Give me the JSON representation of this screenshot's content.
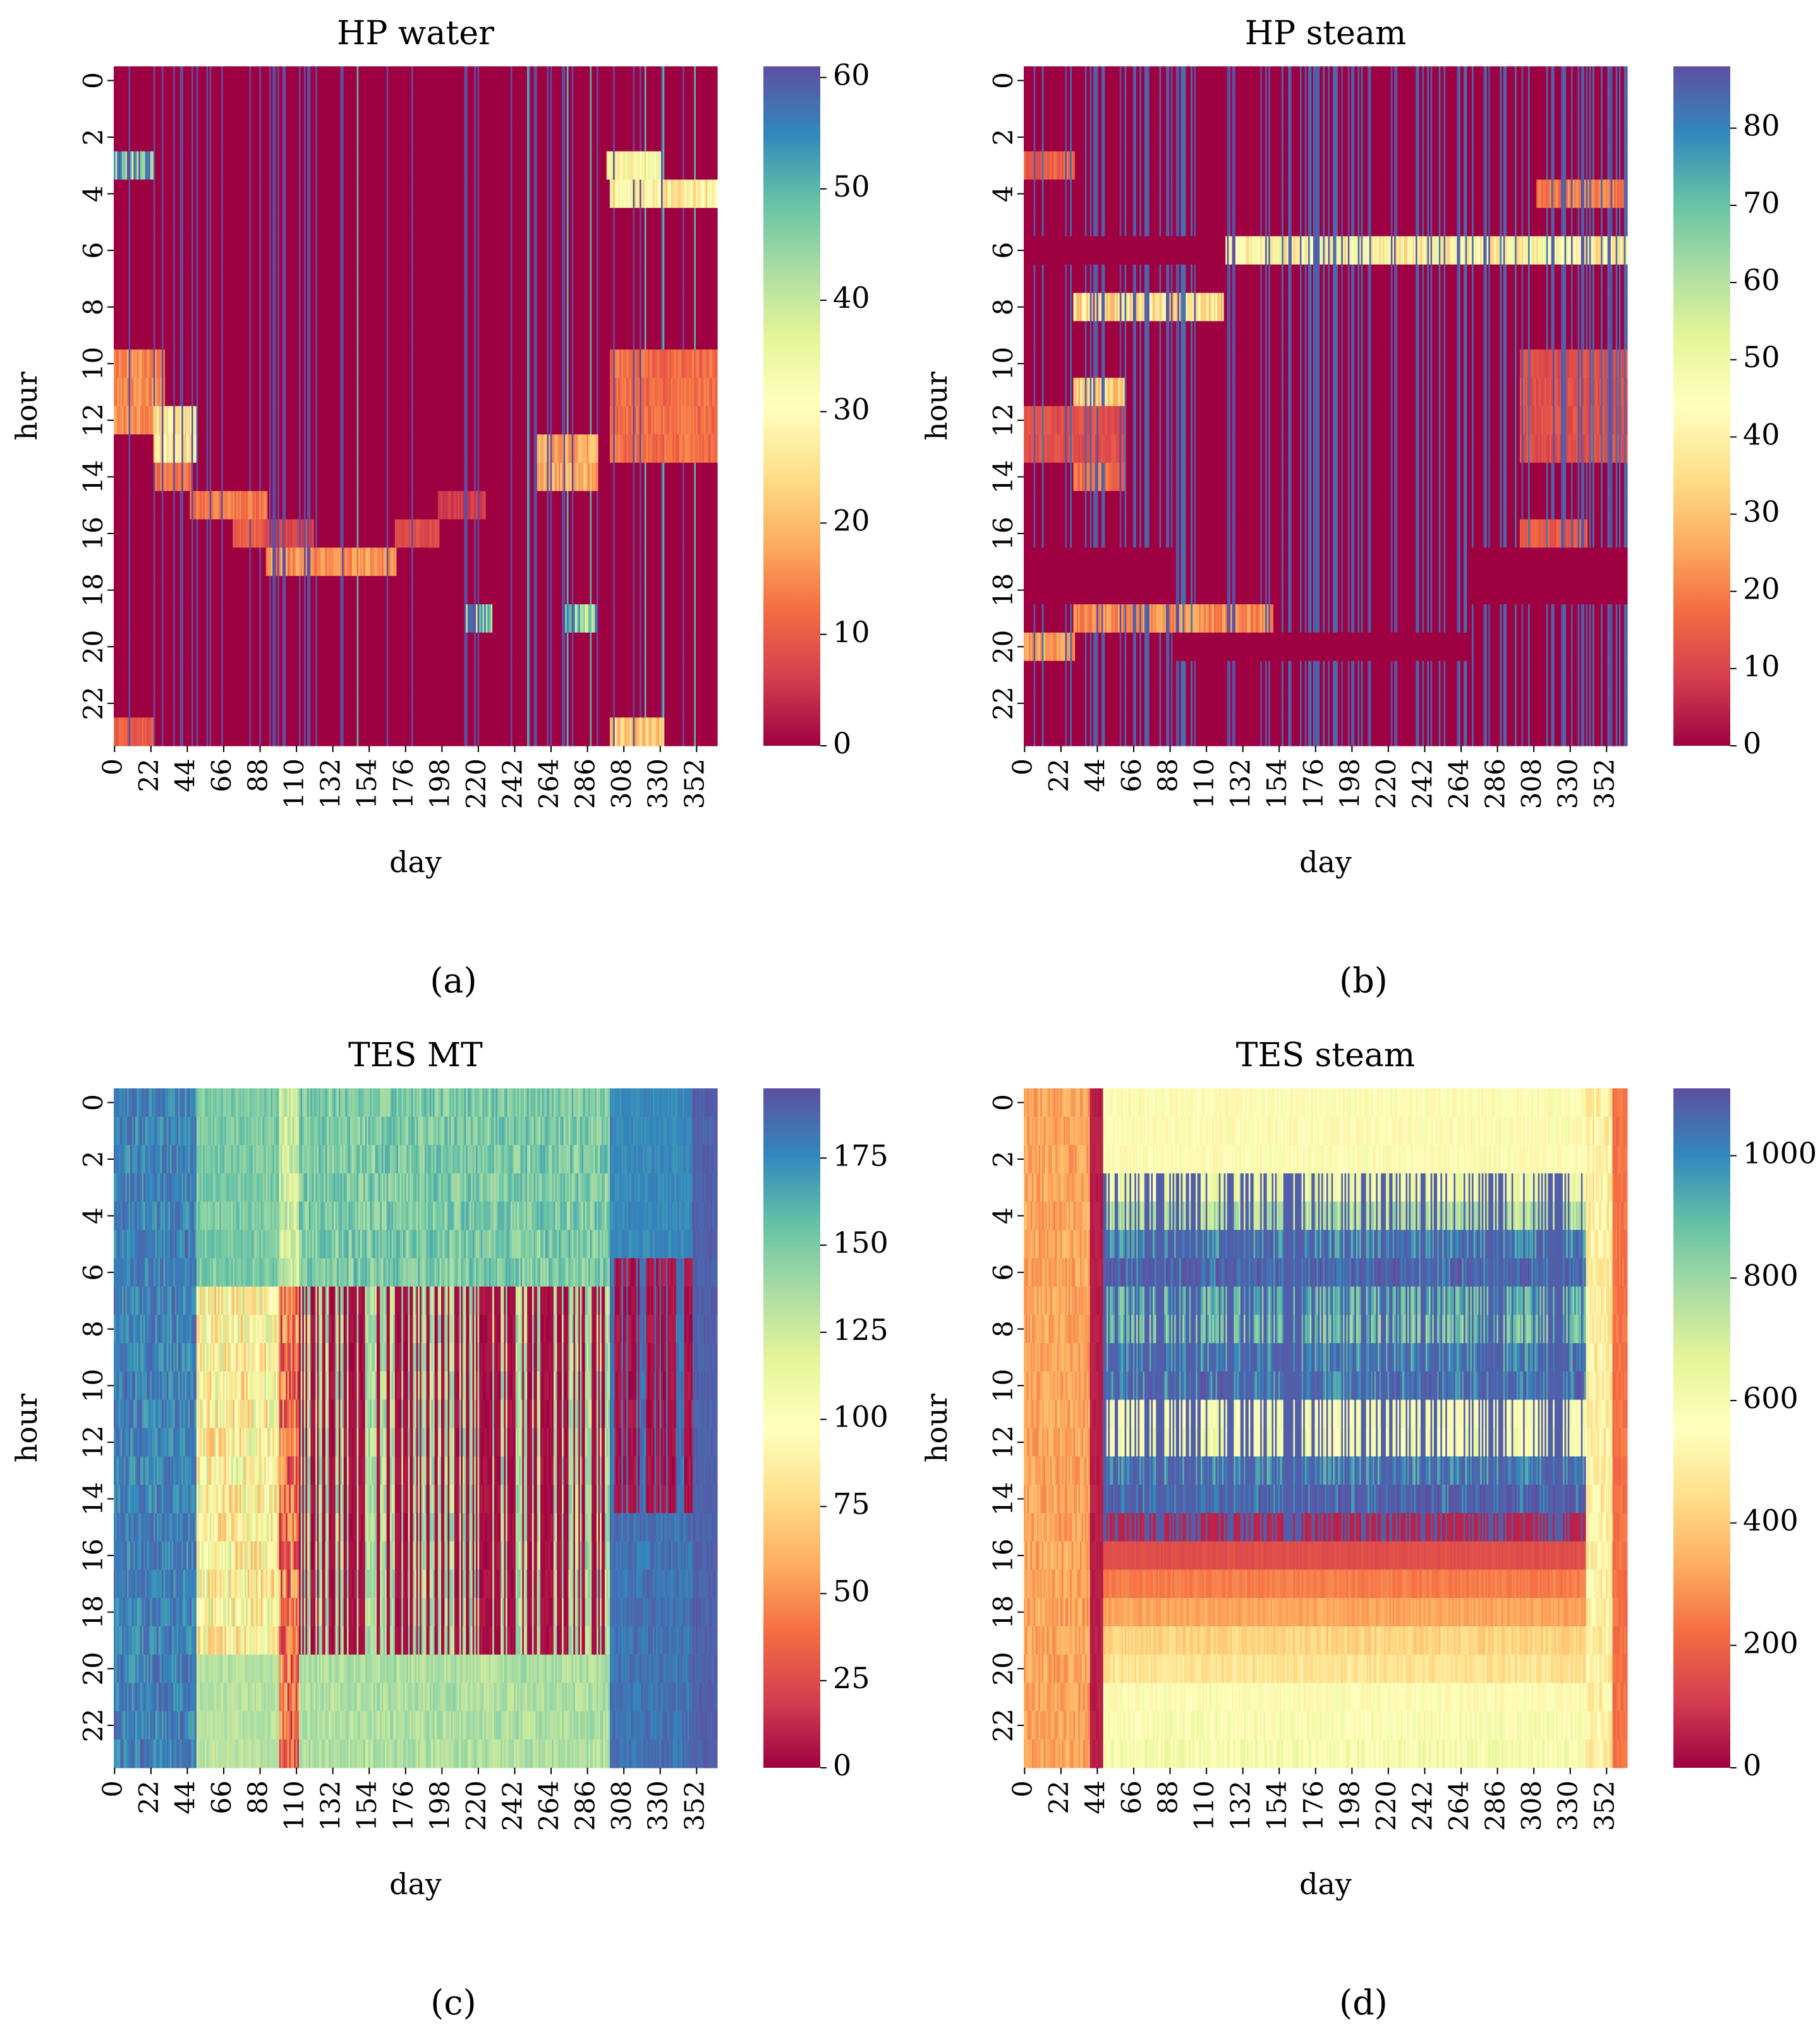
{
  "chart_data": [
    {
      "type": "heatmap",
      "title": "HP water",
      "caption": "(a)",
      "xlabel": "day",
      "ylabel": "hour",
      "x_tick_labels": [
        "0",
        "22",
        "44",
        "66",
        "88",
        "110",
        "132",
        "154",
        "176",
        "198",
        "220",
        "242",
        "264",
        "286",
        "308",
        "330",
        "352"
      ],
      "y_tick_labels": [
        "0",
        "2",
        "4",
        "6",
        "8",
        "10",
        "12",
        "14",
        "16",
        "18",
        "20",
        "22"
      ],
      "x_range": [
        0,
        364
      ],
      "y_range": [
        0,
        23
      ],
      "colorbar": {
        "cmap": "Spectral",
        "min": 0,
        "max": 61,
        "tick_labels": [
          "0",
          "10",
          "20",
          "30",
          "40",
          "50",
          "60"
        ]
      },
      "pattern": "water",
      "regions": [
        {
          "d0": 0,
          "d1": 24,
          "h0": 3,
          "h1": 3,
          "value": 50
        },
        {
          "d0": 298,
          "d1": 330,
          "h0": 3,
          "h1": 3,
          "value": 30
        },
        {
          "d0": 300,
          "d1": 364,
          "h0": 4,
          "h1": 4,
          "value": 28
        },
        {
          "d0": 0,
          "d1": 30,
          "h0": 10,
          "h1": 12,
          "value": 15
        },
        {
          "d0": 24,
          "d1": 50,
          "h0": 12,
          "h1": 13,
          "value": 28
        },
        {
          "d0": 24,
          "d1": 46,
          "h0": 14,
          "h1": 14,
          "value": 12
        },
        {
          "d0": 46,
          "d1": 92,
          "h0": 15,
          "h1": 15,
          "value": 13
        },
        {
          "d0": 72,
          "d1": 92,
          "h0": 16,
          "h1": 16,
          "value": 10
        },
        {
          "d0": 92,
          "d1": 120,
          "h0": 16,
          "h1": 16,
          "value": 7
        },
        {
          "d0": 92,
          "d1": 170,
          "h0": 17,
          "h1": 17,
          "value": 16
        },
        {
          "d0": 170,
          "d1": 196,
          "h0": 16,
          "h1": 16,
          "value": 8
        },
        {
          "d0": 196,
          "d1": 224,
          "h0": 15,
          "h1": 15,
          "value": 6
        },
        {
          "d0": 256,
          "d1": 292,
          "h0": 13,
          "h1": 14,
          "value": 18
        },
        {
          "d0": 212,
          "d1": 228,
          "h0": 19,
          "h1": 19,
          "value": 48
        },
        {
          "d0": 272,
          "d1": 292,
          "h0": 19,
          "h1": 19,
          "value": 45
        },
        {
          "d0": 300,
          "d1": 364,
          "h0": 10,
          "h1": 13,
          "value": 12
        },
        {
          "d0": 0,
          "d1": 24,
          "h0": 23,
          "h1": 23,
          "value": 10
        },
        {
          "d0": 300,
          "d1": 332,
          "h0": 23,
          "h1": 23,
          "value": 22
        }
      ]
    },
    {
      "type": "heatmap",
      "title": "HP steam",
      "caption": "(b)",
      "xlabel": "day",
      "ylabel": "hour",
      "x_tick_labels": [
        "0",
        "22",
        "44",
        "66",
        "88",
        "110",
        "132",
        "154",
        "176",
        "198",
        "220",
        "242",
        "264",
        "286",
        "308",
        "330",
        "352"
      ],
      "y_tick_labels": [
        "0",
        "2",
        "4",
        "6",
        "8",
        "10",
        "12",
        "14",
        "16",
        "18",
        "20",
        "22"
      ],
      "x_range": [
        0,
        364
      ],
      "y_range": [
        0,
        23
      ],
      "colorbar": {
        "cmap": "Spectral",
        "min": 0,
        "max": 88,
        "tick_labels": [
          "0",
          "10",
          "20",
          "30",
          "40",
          "50",
          "60",
          "70",
          "80"
        ]
      },
      "pattern": "steam",
      "regions": [
        {
          "d0": 0,
          "d1": 30,
          "h0": 3,
          "h1": 3,
          "value": 15
        },
        {
          "d0": 310,
          "d1": 364,
          "h0": 4,
          "h1": 4,
          "value": 20
        },
        {
          "d0": 122,
          "d1": 364,
          "h0": 6,
          "h1": 6,
          "value": 42
        },
        {
          "d0": 30,
          "d1": 120,
          "h0": 8,
          "h1": 8,
          "value": 35
        },
        {
          "d0": 30,
          "d1": 60,
          "h0": 11,
          "h1": 11,
          "value": 32
        },
        {
          "d0": 0,
          "d1": 60,
          "h0": 12,
          "h1": 13,
          "value": 12
        },
        {
          "d0": 30,
          "d1": 60,
          "h0": 14,
          "h1": 14,
          "value": 18
        },
        {
          "d0": 300,
          "d1": 364,
          "h0": 10,
          "h1": 13,
          "value": 12
        },
        {
          "d0": 300,
          "d1": 340,
          "h0": 16,
          "h1": 16,
          "value": 14
        },
        {
          "d0": 30,
          "d1": 150,
          "h0": 19,
          "h1": 19,
          "value": 22
        },
        {
          "d0": 0,
          "d1": 30,
          "h0": 20,
          "h1": 20,
          "value": 25
        }
      ]
    },
    {
      "type": "heatmap",
      "title": "TES MT",
      "caption": "(c)",
      "xlabel": "day",
      "ylabel": "hour",
      "x_tick_labels": [
        "0",
        "22",
        "44",
        "66",
        "88",
        "110",
        "132",
        "154",
        "176",
        "198",
        "220",
        "242",
        "264",
        "286",
        "308",
        "330",
        "352"
      ],
      "y_tick_labels": [
        "0",
        "2",
        "4",
        "6",
        "8",
        "10",
        "12",
        "14",
        "16",
        "18",
        "20",
        "22"
      ],
      "x_range": [
        0,
        364
      ],
      "y_range": [
        0,
        23
      ],
      "colorbar": {
        "cmap": "Spectral",
        "min": 0,
        "max": 195,
        "tick_labels": [
          "0",
          "25",
          "50",
          "75",
          "100",
          "125",
          "150",
          "175"
        ]
      },
      "pattern": "tesmt",
      "regions": []
    },
    {
      "type": "heatmap",
      "title": "TES steam",
      "caption": "(d)",
      "xlabel": "day",
      "ylabel": "hour",
      "x_tick_labels": [
        "0",
        "22",
        "44",
        "66",
        "88",
        "110",
        "132",
        "154",
        "176",
        "198",
        "220",
        "242",
        "264",
        "286",
        "308",
        "330",
        "352"
      ],
      "y_tick_labels": [
        "0",
        "2",
        "4",
        "6",
        "8",
        "10",
        "12",
        "14",
        "16",
        "18",
        "20",
        "22"
      ],
      "x_range": [
        0,
        364
      ],
      "y_range": [
        0,
        23
      ],
      "colorbar": {
        "cmap": "Spectral",
        "min": 0,
        "max": 1110,
        "tick_labels": [
          "0",
          "200",
          "400",
          "600",
          "800",
          "1000"
        ]
      },
      "pattern": "tessteam",
      "regions": []
    }
  ]
}
